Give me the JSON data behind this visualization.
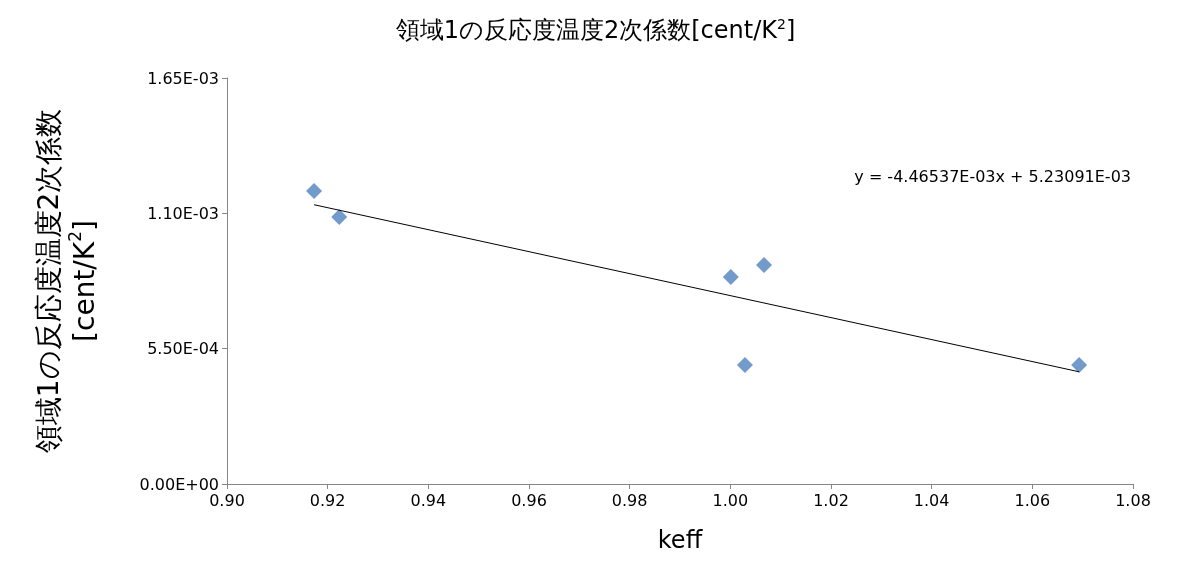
{
  "chart_data": {
    "type": "scatter",
    "title": "領域1の反応度温度2次係数[cent/K$^{2}$]",
    "xlabel": "keff",
    "ylabel": "領域1の反応度温度2次係数 [cent/K$^{2}$]",
    "series": [
      {
        "color": "#4f81bd",
        "marker": "diamond",
        "x": [
          0.9173,
          0.9223,
          1.0001,
          1.0067,
          1.0029,
          1.0693
        ],
        "values": [
          0.001191,
          0.001085,
          0.000841,
          0.00089,
          0.000484,
          0.000484
        ]
      },
      {
        "type": "line",
        "color": "#000000",
        "marker": "none",
        "x": [
          0.9173,
          1.0693
        ],
        "values": [
          0.001135,
          0.000456
        ]
      }
    ],
    "annotations": [
      "y = -4.46537E-03x + 5.23091E-03"
    ],
    "xlim": [
      0.9,
      1.08
    ],
    "xticks": [
      {
        "value": 0.9,
        "label": "0.90"
      },
      {
        "value": 0.92,
        "label": "0.92"
      },
      {
        "value": 0.94,
        "label": "0.94"
      },
      {
        "value": 0.96,
        "label": "0.96"
      },
      {
        "value": 0.98,
        "label": "0.98"
      },
      {
        "value": 1.0,
        "label": "1.00"
      },
      {
        "value": 1.02,
        "label": "1.02"
      },
      {
        "value": 1.04,
        "label": "1.04"
      },
      {
        "value": 1.06,
        "label": "1.06"
      },
      {
        "value": 1.08,
        "label": "1.08"
      }
    ],
    "ylim": [
      0,
      0.00165
    ],
    "yticks": [
      {
        "value": 0,
        "label": "0.00E+00"
      },
      {
        "value": 0.00055,
        "label": "5.50E-04"
      },
      {
        "value": 0.0011,
        "label": "1.10E-03"
      },
      {
        "value": 0.00165,
        "label": "1.65E-03"
      }
    ],
    "grid": false
  }
}
